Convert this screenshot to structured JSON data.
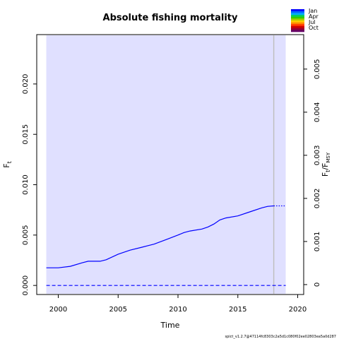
{
  "chart_data": {
    "type": "line",
    "title": "Absolute fishing mortality",
    "xlabel": "Time",
    "ylabel": "F",
    "ylabel_sub": "t",
    "ylabel2": "F",
    "ylabel2_sub_t": "t",
    "ylabel2_sep": "/F",
    "ylabel2_sub_msy": "MSY",
    "xlim": [
      1998.2,
      2020.5
    ],
    "ylim": [
      -0.0009,
      0.0249
    ],
    "y2lim": [
      -0.00023,
      0.0058
    ],
    "x_ticks": [
      "2000",
      "2005",
      "2010",
      "2015",
      "2020"
    ],
    "y_ticks": [
      "0.000",
      "0.005",
      "0.010",
      "0.015",
      "0.020"
    ],
    "y2_ticks": [
      "0",
      "0.001",
      "0.002",
      "0.003",
      "0.004",
      "0.005"
    ],
    "ci_band": {
      "x": [
        1999.0,
        2019.0
      ],
      "color": "#e0e0ff"
    },
    "vline_x": 2018.0,
    "series": [
      {
        "style": "solid",
        "color": "#0000ff",
        "x": [
          1999.0,
          2000.0,
          2001.0,
          2002.0,
          2002.5,
          2003.0,
          2003.5,
          2004.0,
          2005.0,
          2006.0,
          2007.0,
          2007.5,
          2008.0,
          2009.0,
          2010.0,
          2010.5,
          2011.0,
          2012.0,
          2012.5,
          2013.0,
          2013.5,
          2014.0,
          2015.0,
          2016.0,
          2017.0,
          2017.5,
          2018.0
        ],
        "values": [
          0.00175,
          0.00175,
          0.0019,
          0.00225,
          0.0024,
          0.0024,
          0.0024,
          0.00255,
          0.0031,
          0.0035,
          0.0038,
          0.00395,
          0.0041,
          0.00455,
          0.005,
          0.00525,
          0.0054,
          0.0056,
          0.0058,
          0.0061,
          0.0065,
          0.0067,
          0.0069,
          0.0073,
          0.0077,
          0.00785,
          0.0079
        ]
      },
      {
        "style": "dotted",
        "color": "#0000ff",
        "x": [
          2018.0,
          2019.0
        ],
        "values": [
          0.0079,
          0.0079
        ]
      },
      {
        "style": "dashed",
        "color": "#0000ff",
        "x": [
          1999.0,
          2019.0
        ],
        "values": [
          0.0,
          0.0
        ]
      }
    ],
    "legend": {
      "placement": "top-right",
      "entries": [
        "Jan",
        "Apr",
        "Jul",
        "Oct"
      ],
      "colors": [
        "#0000ff",
        "#0066ff",
        "#00aaff",
        "#00cc66",
        "#33cc00",
        "#aacc00",
        "#ffcc00",
        "#ff8800",
        "#ff3300",
        "#cc0000",
        "#990033",
        "#660066"
      ]
    },
    "footnote": "spict_v1.2.7@47114fc8303c2a5d1c080f02ee02803ea5a0d287"
  }
}
